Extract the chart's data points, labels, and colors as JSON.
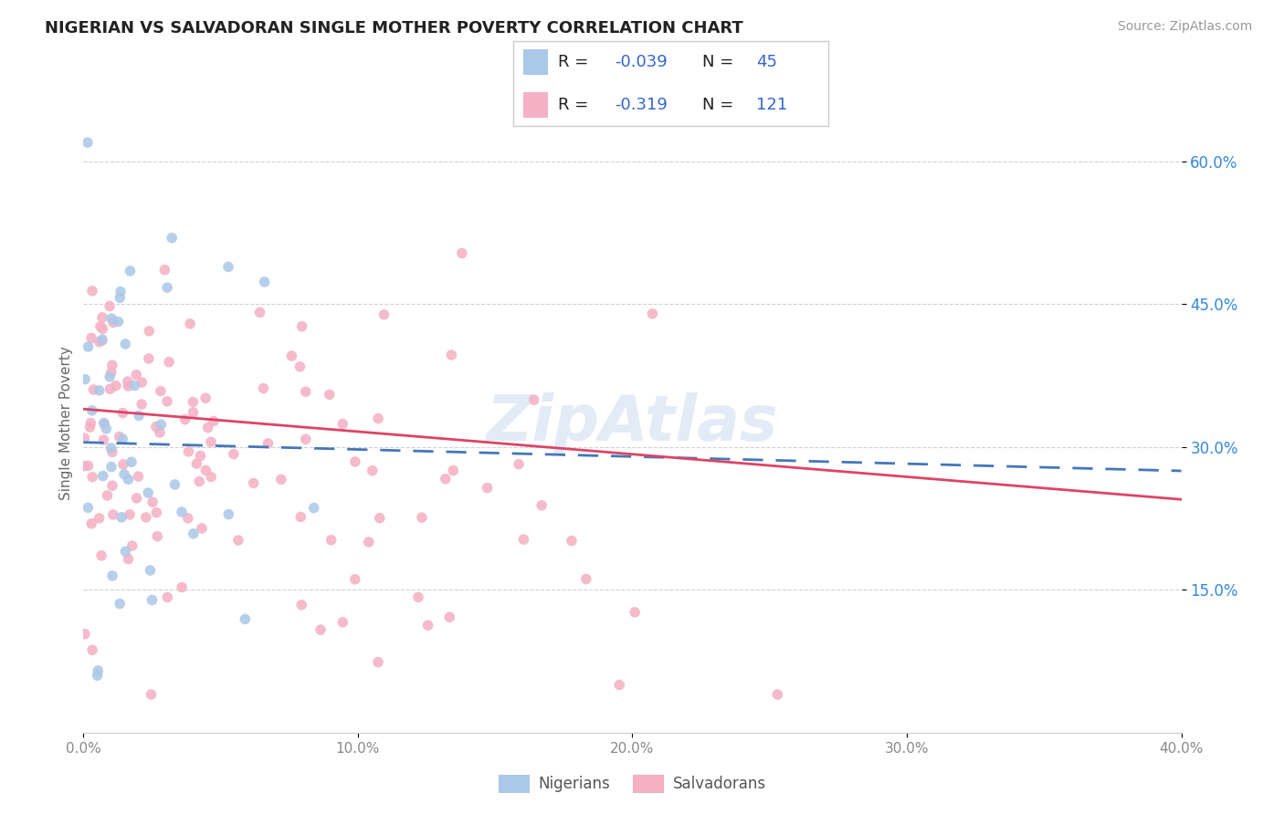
{
  "title": "NIGERIAN VS SALVADORAN SINGLE MOTHER POVERTY CORRELATION CHART",
  "source": "Source: ZipAtlas.com",
  "ylabel": "Single Mother Poverty",
  "legend_label1": "Nigerians",
  "legend_label2": "Salvadorans",
  "color_nigerian": "#aac8e8",
  "color_salvadoran": "#f4b0c4",
  "color_line_nigerian": "#4477bb",
  "color_line_salvadoran": "#dd4466",
  "color_grid": "#cccccc",
  "color_R_label": "#222222",
  "color_R_val": "#3366cc",
  "color_N_label": "#222222",
  "color_N_val": "#3366cc",
  "color_title": "#222222",
  "color_source": "#999999",
  "color_ylabel": "#666666",
  "color_xtick": "#888888",
  "color_ytick": "#3388dd",
  "watermark_color": "#d0dff0",
  "xmin": 0.0,
  "xmax": 0.4,
  "ymin": 0.0,
  "ymax": 0.65,
  "xtick_vals": [
    0.0,
    0.1,
    0.2,
    0.3,
    0.4
  ],
  "xtick_labels": [
    "0.0%",
    "10.0%",
    "20.0%",
    "30.0%",
    "40.0%"
  ],
  "ytick_vals": [
    0.15,
    0.3,
    0.45,
    0.6
  ],
  "ytick_labels": [
    "15.0%",
    "30.0%",
    "45.0%",
    "60.0%"
  ]
}
